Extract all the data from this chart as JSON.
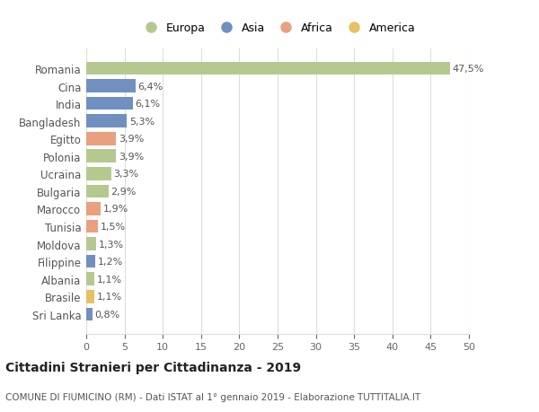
{
  "categories": [
    "Romania",
    "Cina",
    "India",
    "Bangladesh",
    "Egitto",
    "Polonia",
    "Ucraina",
    "Bulgaria",
    "Marocco",
    "Tunisia",
    "Moldova",
    "Filippine",
    "Albania",
    "Brasile",
    "Sri Lanka"
  ],
  "values": [
    47.5,
    6.4,
    6.1,
    5.3,
    3.9,
    3.9,
    3.3,
    2.9,
    1.9,
    1.5,
    1.3,
    1.2,
    1.1,
    1.1,
    0.8
  ],
  "labels": [
    "47,5%",
    "6,4%",
    "6,1%",
    "5,3%",
    "3,9%",
    "3,9%",
    "3,3%",
    "2,9%",
    "1,9%",
    "1,5%",
    "1,3%",
    "1,2%",
    "1,1%",
    "1,1%",
    "0,8%"
  ],
  "colors": [
    "#b5c98e",
    "#7090c0",
    "#7090c0",
    "#7090c0",
    "#e8a080",
    "#b5c98e",
    "#b5c98e",
    "#b5c98e",
    "#e8a080",
    "#e8a080",
    "#b5c98e",
    "#7090c0",
    "#b5c98e",
    "#e8c060",
    "#7090c0"
  ],
  "legend_labels": [
    "Europa",
    "Asia",
    "Africa",
    "America"
  ],
  "legend_colors": [
    "#b5c98e",
    "#7090c0",
    "#e8a080",
    "#e8c060"
  ],
  "title": "Cittadini Stranieri per Cittadinanza - 2019",
  "subtitle": "COMUNE DI FIUMICINO (RM) - Dati ISTAT al 1° gennaio 2019 - Elaborazione TUTTITALIA.IT",
  "xlim": [
    0,
    50
  ],
  "xticks": [
    0,
    5,
    10,
    15,
    20,
    25,
    30,
    35,
    40,
    45,
    50
  ],
  "bg_color": "#ffffff",
  "grid_color": "#dddddd"
}
